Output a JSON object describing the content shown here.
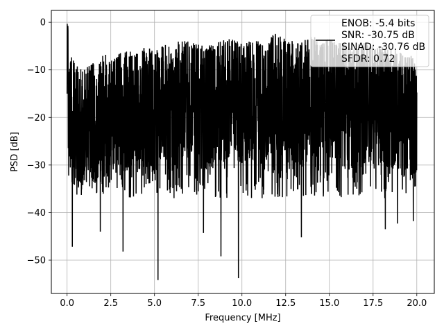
{
  "chart_data": {
    "type": "line",
    "title": "",
    "xlabel": "Frequency [MHz]",
    "ylabel": "PSD [dB]",
    "xlim": [
      -0.9,
      21.0
    ],
    "ylim": [
      -57.0,
      2.5
    ],
    "xticks": [
      0.0,
      2.5,
      5.0,
      7.5,
      10.0,
      12.5,
      15.0,
      17.5,
      20.0
    ],
    "xtick_labels": [
      "0.0",
      "2.5",
      "5.0",
      "7.5",
      "10.0",
      "12.5",
      "15.0",
      "17.5",
      "20.0"
    ],
    "yticks": [
      0,
      -10,
      -20,
      -30,
      -40,
      -50
    ],
    "ytick_labels": [
      "0",
      "−10",
      "−20",
      "−30",
      "−40",
      "−50"
    ],
    "grid": true,
    "legend_position": "top-right",
    "legend_entries": [
      "ENOB: -5.4 bits",
      "SNR: -30.75 dB",
      "SINAD: -30.76 dB",
      "SFDR: 0.72"
    ],
    "series": [
      {
        "color": "#000000",
        "x_start": 0.0,
        "x_end": 20.0,
        "description": "dense noise-like spectrum; band roughly -35 to -7 dB",
        "envelope_top": [
          [
            0.0,
            -0.3
          ],
          [
            0.1,
            -5.0
          ],
          [
            0.5,
            -9.0
          ],
          [
            1.0,
            -9.5
          ],
          [
            1.5,
            -8.5
          ],
          [
            2.0,
            -8.0
          ],
          [
            2.05,
            -5.5
          ],
          [
            2.5,
            -8.0
          ],
          [
            3.0,
            -6.5
          ],
          [
            3.5,
            -6.0
          ],
          [
            4.0,
            -6.5
          ],
          [
            4.5,
            -5.0
          ],
          [
            5.0,
            -6.0
          ],
          [
            5.5,
            -4.5
          ],
          [
            6.0,
            -5.5
          ],
          [
            6.5,
            -3.5
          ],
          [
            7.0,
            -4.0
          ],
          [
            7.5,
            -4.5
          ],
          [
            8.0,
            -5.0
          ],
          [
            8.5,
            -4.5
          ],
          [
            9.0,
            -3.5
          ],
          [
            9.5,
            -2.5
          ],
          [
            10.0,
            -4.5
          ],
          [
            10.5,
            -3.5
          ],
          [
            11.0,
            -4.0
          ],
          [
            11.5,
            -3.5
          ],
          [
            12.0,
            -2.0
          ],
          [
            12.5,
            -3.5
          ],
          [
            13.0,
            -4.0
          ],
          [
            13.5,
            -4.0
          ],
          [
            14.0,
            -2.5
          ],
          [
            14.5,
            -4.0
          ],
          [
            15.0,
            -3.5
          ],
          [
            15.5,
            -4.0
          ],
          [
            16.0,
            -4.5
          ],
          [
            16.5,
            -5.0
          ],
          [
            17.0,
            -4.0
          ],
          [
            17.5,
            -5.0
          ],
          [
            18.0,
            -5.0
          ],
          [
            18.5,
            -5.5
          ],
          [
            19.0,
            -6.0
          ],
          [
            19.5,
            -6.5
          ],
          [
            20.0,
            -7.5
          ]
        ],
        "deep_dips": [
          [
            0.3,
            -47.2
          ],
          [
            1.9,
            -44.0
          ],
          [
            3.2,
            -48.2
          ],
          [
            5.2,
            -54.2
          ],
          [
            7.8,
            -44.3
          ],
          [
            8.8,
            -49.2
          ],
          [
            9.8,
            -53.8
          ],
          [
            13.4,
            -45.2
          ],
          [
            18.2,
            -43.5
          ],
          [
            18.9,
            -42.3
          ],
          [
            19.8,
            -41.8
          ]
        ]
      }
    ]
  }
}
